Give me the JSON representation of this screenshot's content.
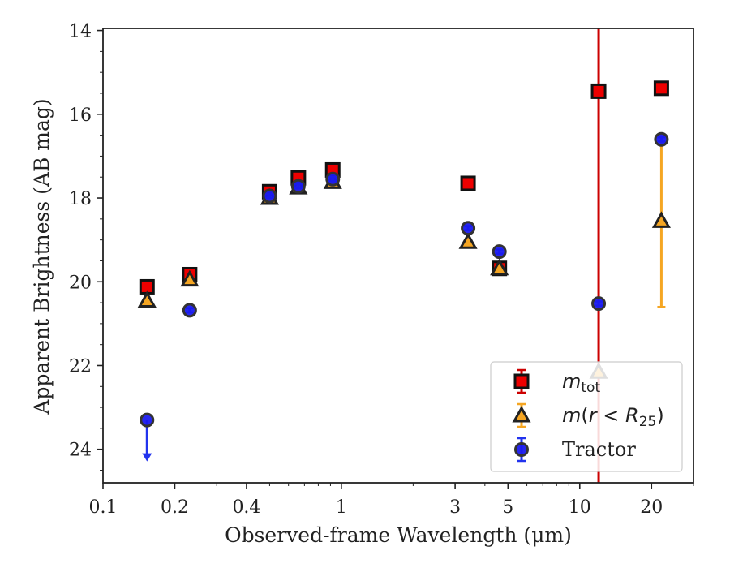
{
  "chart_data": {
    "type": "scatter",
    "title": "",
    "xlabel": "Observed-frame Wavelength (μm)",
    "ylabel": "Apparent Brightness (AB mag)",
    "x_scale": "log",
    "y_inverted": true,
    "xlim": [
      0.1,
      30
    ],
    "ylim": [
      24.8,
      13.95
    ],
    "x_ticks": [
      {
        "value": 0.1,
        "label": "0.1"
      },
      {
        "value": 0.2,
        "label": "0.2"
      },
      {
        "value": 0.4,
        "label": "0.4"
      },
      {
        "value": 1,
        "label": "1"
      },
      {
        "value": 3,
        "label": "3"
      },
      {
        "value": 5,
        "label": "5"
      },
      {
        "value": 10,
        "label": "10"
      },
      {
        "value": 20,
        "label": "20"
      }
    ],
    "y_ticks": [
      {
        "value": 14,
        "label": "14"
      },
      {
        "value": 16,
        "label": "16"
      },
      {
        "value": 18,
        "label": "18"
      },
      {
        "value": 20,
        "label": "20"
      },
      {
        "value": 22,
        "label": "22"
      },
      {
        "value": 24,
        "label": "24"
      }
    ],
    "grid": false,
    "legend_position": "bottom-right",
    "series": [
      {
        "name": "m_tot",
        "legend_label": "mtot",
        "marker": "square",
        "color": "#ee0000",
        "edge_color": "#111111",
        "points": [
          {
            "x": 0.153,
            "y": 20.12,
            "err": 0.05
          },
          {
            "x": 0.231,
            "y": 19.83,
            "err": 0.05
          },
          {
            "x": 0.5,
            "y": 17.85,
            "err": 0.04
          },
          {
            "x": 0.66,
            "y": 17.52,
            "err": 0.04
          },
          {
            "x": 0.92,
            "y": 17.33,
            "err": 0.04
          },
          {
            "x": 3.4,
            "y": 17.65,
            "err": 0.03
          },
          {
            "x": 4.6,
            "y": 19.68,
            "err": 0.05
          },
          {
            "x": 12.0,
            "y": 15.45,
            "err": 10.0
          },
          {
            "x": 22.0,
            "y": 15.38,
            "err": 0.04
          }
        ]
      },
      {
        "name": "m(r < R25)",
        "legend_label": "m(r < R25)",
        "marker": "triangle",
        "color": "#f5a623",
        "edge_color": "#222222",
        "points": [
          {
            "x": 0.153,
            "y": 20.45,
            "err": 0.05
          },
          {
            "x": 0.231,
            "y": 19.95,
            "err": 0.05
          },
          {
            "x": 0.5,
            "y": 18.0,
            "err": 0.04
          },
          {
            "x": 0.66,
            "y": 17.75,
            "err": 0.04
          },
          {
            "x": 0.92,
            "y": 17.62,
            "err": 0.04
          },
          {
            "x": 3.4,
            "y": 19.05,
            "err": 0.05
          },
          {
            "x": 4.6,
            "y": 19.68,
            "err": 0.05
          },
          {
            "x": 12.0,
            "y": 22.15,
            "err": 0.0
          },
          {
            "x": 22.0,
            "y": 18.55,
            "err": 2.05
          }
        ]
      },
      {
        "name": "Tractor",
        "legend_label": "Tractor",
        "marker": "circle",
        "color": "#1a1aee",
        "edge_color": "#333333",
        "points": [
          {
            "x": 0.153,
            "y": 23.3,
            "err": 0.0,
            "upper_limit": true
          },
          {
            "x": 0.231,
            "y": 20.68,
            "err": 0.05
          },
          {
            "x": 0.5,
            "y": 17.95,
            "err": 0.05
          },
          {
            "x": 0.66,
            "y": 17.72,
            "err": 0.05
          },
          {
            "x": 0.92,
            "y": 17.55,
            "err": 0.05
          },
          {
            "x": 3.4,
            "y": 18.72,
            "err": 0.05
          },
          {
            "x": 4.6,
            "y": 19.28,
            "err": 0.05
          },
          {
            "x": 12.0,
            "y": 20.52,
            "err": 0.05
          },
          {
            "x": 22.0,
            "y": 16.6,
            "err": 0.05
          }
        ]
      }
    ],
    "colors": {
      "mtot_face": "#ee0000",
      "mtot_err": "#cc0000",
      "r25_face": "#f5a623",
      "r25_err": "#f5a623",
      "tractor_face": "#1a1aee",
      "tractor_err": "#2233ee",
      "wise_band_err": "#f5a623"
    }
  }
}
